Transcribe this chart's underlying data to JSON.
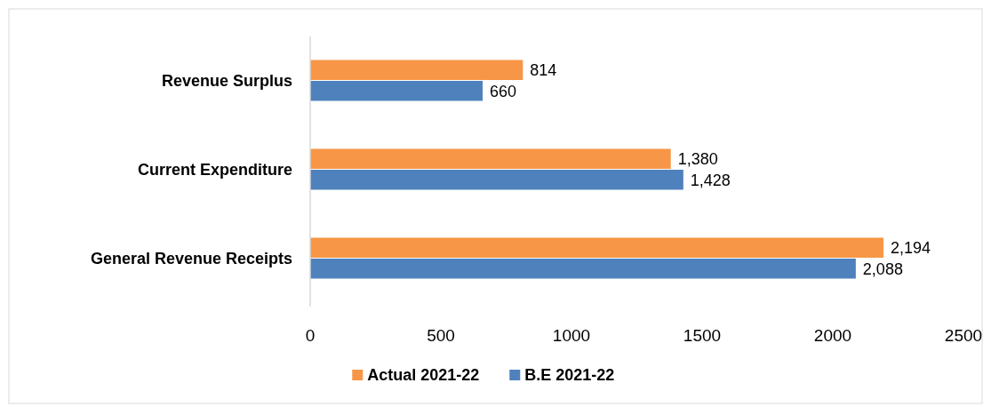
{
  "chart_data": {
    "type": "bar",
    "orientation": "horizontal",
    "categories": [
      "Revenue Surplus",
      "Current Expenditure",
      "General Revenue Receipts"
    ],
    "series": [
      {
        "name": "Actual 2021-22",
        "color": "#f79646",
        "values": [
          814,
          1380,
          2194
        ],
        "value_labels": [
          "814",
          "1,380",
          "2,194"
        ]
      },
      {
        "name": "B.E 2021-22",
        "color": "#4f81bd",
        "values": [
          660,
          1428,
          2088
        ],
        "value_labels": [
          "660",
          "1,428",
          "2,088"
        ]
      }
    ],
    "xlim": [
      0,
      2500
    ],
    "xticks": [
      0,
      500,
      1000,
      1500,
      2000,
      2500
    ],
    "legend": "bottom",
    "grid": false
  }
}
